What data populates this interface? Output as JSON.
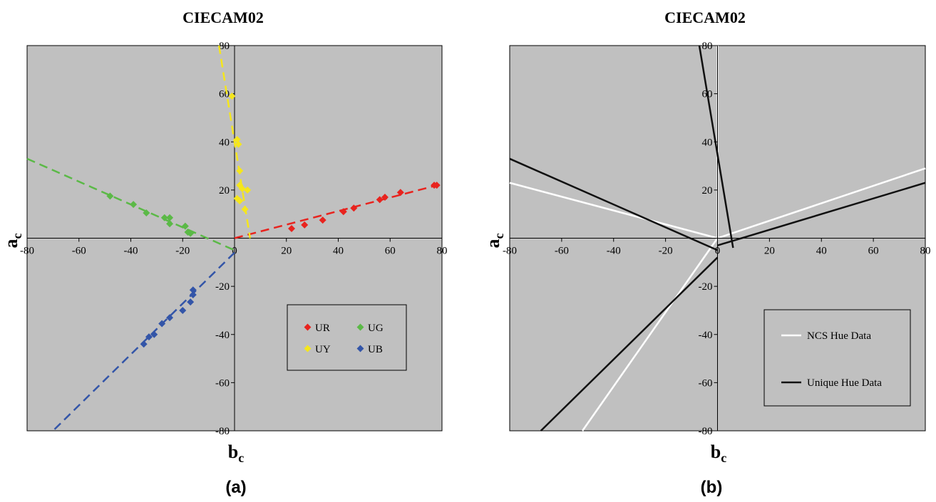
{
  "chart_data": [
    {
      "type": "scatter",
      "title": "CIECAM02",
      "panel_label": "(a)",
      "xlabel": "b",
      "xlabel_sub": "c",
      "ylabel": "a",
      "ylabel_sub": "c",
      "xlim": [
        -80,
        80
      ],
      "ylim": [
        -80,
        80
      ],
      "xticks": [
        -80,
        -60,
        -40,
        -20,
        0,
        20,
        40,
        60,
        80
      ],
      "yticks": [
        80,
        60,
        40,
        20,
        0,
        -20,
        -40,
        -60,
        -80
      ],
      "grid": false,
      "legend_position": "bottom-right",
      "background": "#c0c0c0",
      "series": [
        {
          "name": "UR",
          "color": "#e8231e",
          "points": [
            [
              22,
              4
            ],
            [
              27,
              5.5
            ],
            [
              34,
              7.5
            ],
            [
              42,
              11
            ],
            [
              46,
              12.5
            ],
            [
              56,
              16
            ],
            [
              58,
              17
            ],
            [
              64,
              19
            ],
            [
              77,
              22
            ],
            [
              78,
              22
            ]
          ],
          "fit": [
            [
              0,
              0
            ],
            [
              80,
              22.5
            ]
          ]
        },
        {
          "name": "UG",
          "color": "#5bb947",
          "points": [
            [
              -48,
              17.5
            ],
            [
              -39,
              14
            ],
            [
              -34,
              10.5
            ],
            [
              -27,
              8.5
            ],
            [
              -25,
              8.5
            ],
            [
              -25,
              6
            ],
            [
              -19,
              5
            ],
            [
              -18,
              2.5
            ],
            [
              -17,
              2
            ]
          ],
          "fit": [
            [
              -80,
              33
            ],
            [
              0,
              -5
            ]
          ]
        },
        {
          "name": "UY",
          "color": "#f5e61c",
          "points": [
            [
              -1,
              59
            ],
            [
              1,
              41
            ],
            [
              1.5,
              39
            ],
            [
              2,
              28
            ],
            [
              2,
              22
            ],
            [
              3,
              20.5
            ],
            [
              1,
              16.5
            ],
            [
              2,
              15.5
            ],
            [
              5,
              20
            ],
            [
              4,
              12
            ]
          ],
          "fit": [
            [
              -6,
              80
            ],
            [
              6,
              0
            ]
          ]
        },
        {
          "name": "UB",
          "color": "#3355a8",
          "points": [
            [
              -16,
              -21.5
            ],
            [
              -16,
              -23.5
            ],
            [
              -17,
              -26.5
            ],
            [
              -20,
              -30
            ],
            [
              -25,
              -33
            ],
            [
              -28,
              -35.5
            ],
            [
              -31,
              -40
            ],
            [
              -33,
              -41
            ],
            [
              -35,
              -44
            ]
          ],
          "fit": [
            [
              0,
              -6
            ],
            [
              -70,
              -80
            ]
          ]
        }
      ]
    },
    {
      "type": "line",
      "title": "CIECAM02",
      "panel_label": "(b)",
      "xlabel": "b",
      "xlabel_sub": "c",
      "ylabel": "a",
      "ylabel_sub": "c",
      "xlim": [
        -80,
        80
      ],
      "ylim": [
        -80,
        80
      ],
      "xticks": [
        -80,
        -60,
        -40,
        -20,
        0,
        20,
        40,
        60,
        80
      ],
      "yticks": [
        80,
        60,
        40,
        20,
        0,
        -20,
        -40,
        -60,
        -80
      ],
      "grid": false,
      "legend_position": "bottom-right",
      "background": "#c0c0c0",
      "series": [
        {
          "name": "NCS Hue Data",
          "color": "#ffffff",
          "segments": [
            [
              [
                0,
                0
              ],
              [
                80,
                29
              ]
            ],
            [
              [
                0,
                0
              ],
              [
                -80,
                23
              ]
            ],
            [
              [
                0,
                0
              ],
              [
                0,
                80
              ]
            ],
            [
              [
                0,
                0
              ],
              [
                -52,
                -80
              ]
            ]
          ]
        },
        {
          "name": "Unique Hue Data",
          "color": "#111111",
          "segments": [
            [
              [
                0,
                -3
              ],
              [
                80,
                23
              ]
            ],
            [
              [
                -80,
                33
              ],
              [
                0,
                -5
              ]
            ],
            [
              [
                -7,
                80
              ],
              [
                6,
                -4
              ]
            ],
            [
              [
                0,
                -8
              ],
              [
                -68,
                -80
              ]
            ]
          ]
        }
      ]
    }
  ]
}
